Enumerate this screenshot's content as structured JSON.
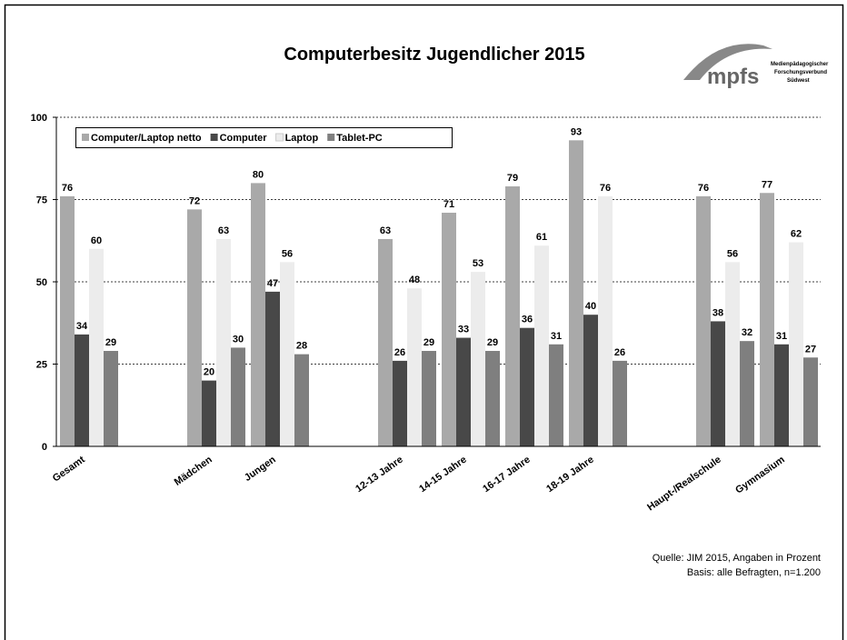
{
  "chart_data": {
    "type": "bar",
    "title": "Computerbesitz Jugendlicher 2015",
    "categories": [
      "Gesamt",
      null,
      "Mädchen",
      "Jungen",
      null,
      "12-13 Jahre",
      "14-15 Jahre",
      "16-17 Jahre",
      "18-19 Jahre",
      null,
      "Haupt-/Realschule",
      "Gymnasium"
    ],
    "series": [
      {
        "name": "Computer/Laptop netto",
        "color": "#a9a9a9",
        "values": [
          76,
          null,
          72,
          80,
          null,
          63,
          71,
          79,
          93,
          null,
          76,
          77
        ]
      },
      {
        "name": "Computer",
        "color": "#484848",
        "values": [
          34,
          null,
          20,
          47,
          null,
          26,
          33,
          36,
          40,
          null,
          38,
          31
        ]
      },
      {
        "name": "Laptop",
        "color": "#ececec",
        "values": [
          60,
          null,
          63,
          56,
          null,
          48,
          53,
          61,
          76,
          null,
          56,
          62
        ]
      },
      {
        "name": "Tablet-PC",
        "color": "#7f7f7f",
        "values": [
          29,
          null,
          30,
          28,
          null,
          29,
          29,
          31,
          26,
          null,
          32,
          27
        ]
      }
    ],
    "ylim": [
      0,
      100
    ],
    "yticks": [
      0,
      25,
      50,
      75,
      100
    ],
    "grid": true,
    "legend": "top-left",
    "source": [
      "Quelle: JIM 2015, Angaben in Prozent",
      "Basis: alle Befragten, n=1.200"
    ]
  },
  "logo": {
    "text": "mpfs",
    "lines": [
      "Medienpädagogischer",
      "Forschungsverbund",
      "Südwest"
    ]
  }
}
